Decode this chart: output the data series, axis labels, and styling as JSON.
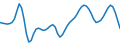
{
  "x": [
    0,
    1,
    2,
    3,
    4,
    5,
    6,
    7,
    8,
    9,
    10,
    11,
    12,
    13,
    14,
    15,
    16,
    17,
    18,
    19,
    20,
    21,
    22,
    23,
    24,
    25,
    26,
    27,
    28,
    29,
    30,
    31,
    32,
    33,
    34,
    35,
    36,
    37,
    38,
    39,
    40,
    41,
    42,
    43,
    44,
    45,
    46,
    47,
    48,
    49,
    50
  ],
  "y": [
    -0.05,
    -0.08,
    -0.1,
    -0.12,
    -0.1,
    -0.05,
    0.1,
    0.45,
    0.78,
    0.6,
    0.1,
    -0.55,
    -0.92,
    -0.85,
    -0.55,
    -0.35,
    -0.3,
    -0.35,
    -0.4,
    -0.38,
    -0.3,
    -0.2,
    -0.15,
    -0.25,
    -0.55,
    -0.7,
    -0.6,
    -0.4,
    -0.2,
    -0.05,
    0.05,
    0.15,
    0.3,
    0.5,
    0.65,
    0.72,
    0.68,
    0.55,
    0.35,
    0.1,
    -0.05,
    -0.02,
    0.05,
    0.2,
    0.4,
    0.6,
    0.72,
    0.65,
    0.4,
    0.05,
    -0.3
  ],
  "line_color": "#1a7abf",
  "linewidth": 1.1,
  "background_color": "#ffffff",
  "xlim": [
    0,
    50
  ],
  "ylim": [
    -1.05,
    0.95
  ]
}
